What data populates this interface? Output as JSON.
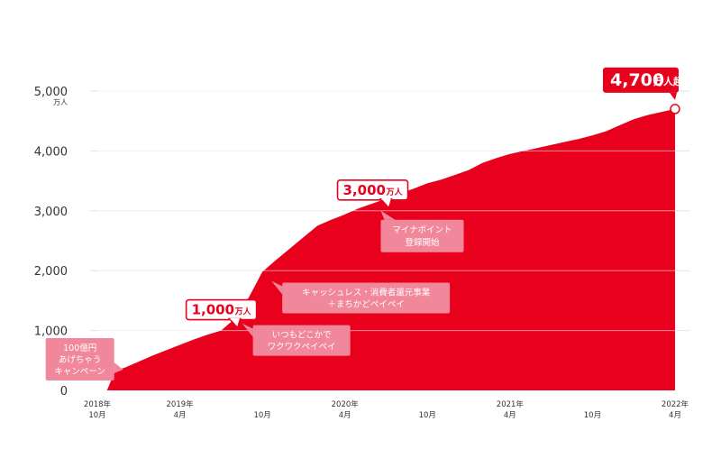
{
  "chart_data": {
    "type": "area",
    "title": "",
    "color": "#e8001c",
    "grid": true,
    "ylim": [
      0,
      5000
    ],
    "y_ticks": [
      "0",
      "1,000",
      "2,000",
      "3,000",
      "4,000",
      "5,000"
    ],
    "y_unit": "万人",
    "x_ticks": [
      {
        "line1": "2018年",
        "line2": "10月",
        "month": 0
      },
      {
        "line1": "2019年",
        "line2": "4月",
        "month": 6
      },
      {
        "line1": "",
        "line2": "10月",
        "month": 12
      },
      {
        "line1": "2020年",
        "line2": "4月",
        "month": 18
      },
      {
        "line1": "",
        "line2": "10月",
        "month": 24
      },
      {
        "line1": "2021年",
        "line2": "4月",
        "month": 30
      },
      {
        "line1": "",
        "line2": "10月",
        "month": 36
      },
      {
        "line1": "2022年",
        "line2": "4月",
        "month": 42
      }
    ],
    "x": [
      0,
      0.7,
      1.3,
      2.0,
      3.0,
      4.0,
      5.0,
      6.0,
      7.0,
      8.0,
      9.0,
      10.0,
      11.0,
      12.0,
      13.0,
      14.0,
      15.0,
      16.0,
      17.0,
      18.0,
      19.0,
      20.0,
      21.0,
      22.0,
      23.0,
      24.0,
      25.0,
      26.0,
      27.0,
      28.0,
      29.0,
      30.0,
      31.0,
      32.0,
      33.0,
      34.0,
      35.0,
      36.0,
      37.0,
      38.0,
      39.0,
      40.0,
      41.0,
      42.0
    ],
    "values": [
      0,
      0,
      330,
      380,
      480,
      580,
      670,
      760,
      850,
      930,
      1000,
      1200,
      1550,
      1980,
      2180,
      2370,
      2560,
      2750,
      2850,
      2940,
      3040,
      3120,
      3200,
      3290,
      3370,
      3460,
      3520,
      3600,
      3680,
      3800,
      3880,
      3950,
      4000,
      4050,
      4100,
      4150,
      4200,
      4260,
      4330,
      4430,
      4530,
      4600,
      4650,
      4700
    ],
    "annotations": {
      "milestones": [
        {
          "value": "1,000",
          "unit": "万人",
          "month": 10,
          "y": 1000
        },
        {
          "value": "3,000",
          "unit": "万人",
          "month": 21,
          "y": 3000
        }
      ],
      "final": {
        "value": "4,700",
        "unit": "万人超",
        "month": 42,
        "y": 4700
      },
      "notes": [
        {
          "lines": [
            "100億円",
            "あげちゃう",
            "キャンペーン"
          ],
          "month": 0.7,
          "y": 0
        },
        {
          "lines": [
            "いつもどこかで",
            "ワクワクペイペイ"
          ],
          "month": 10,
          "y": 1000
        },
        {
          "lines": [
            "キャッシュレス・消費者還元事業",
            "＋まちかどペイペイ"
          ],
          "month": 12,
          "y": 1800
        },
        {
          "lines": [
            "マイナポイント",
            "登録開始"
          ],
          "month": 21,
          "y": 3000
        }
      ]
    }
  }
}
